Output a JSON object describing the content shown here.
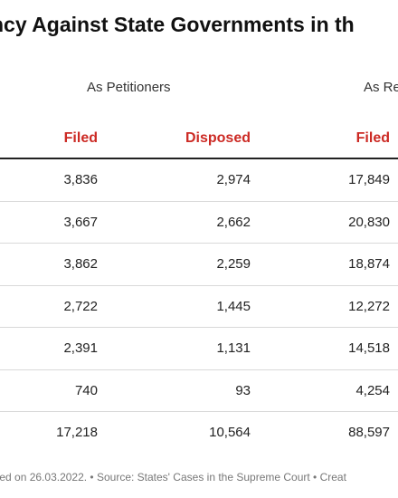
{
  "title": "ncy Against State Governments in th",
  "groups": {
    "petitioners": "As Petitioners",
    "respondents": "As Re"
  },
  "headers": {
    "filed": "Filed",
    "disposed": "Disposed",
    "filed_r": "Filed"
  },
  "rows": [
    {
      "filed": "3,836",
      "disposed": "2,974",
      "filed_r": "17,849"
    },
    {
      "filed": "3,667",
      "disposed": "2,662",
      "filed_r": "20,830"
    },
    {
      "filed": "3,862",
      "disposed": "2,259",
      "filed_r": "18,874"
    },
    {
      "filed": "2,722",
      "disposed": "1,445",
      "filed_r": "12,272"
    },
    {
      "filed": "2,391",
      "disposed": "1,131",
      "filed_r": "14,518"
    },
    {
      "filed": "740",
      "disposed": "93",
      "filed_r": "4,254"
    },
    {
      "filed": "17,218",
      "disposed": "10,564",
      "filed_r": "88,597"
    }
  ],
  "footer": "pared on 26.03.2022. • Source: States' Cases in the Supreme Court • Creat",
  "colors": {
    "header_red": "#cc2a24",
    "rule": "#222222",
    "row_divider": "#d9d9d9"
  }
}
